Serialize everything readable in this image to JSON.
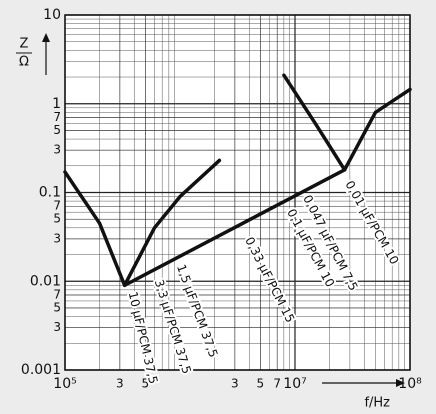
{
  "chart_data": {
    "type": "line",
    "ylabel": {
      "numerator": "Z",
      "denominator": "Ω"
    },
    "xlabel": "f/Hz",
    "xscale": "log",
    "yscale": "log",
    "grid": true,
    "minor_grid": true,
    "xlim": [
      100000,
      100000000
    ],
    "ylim": [
      0.001,
      10
    ],
    "xticks": [
      {
        "value": 100000,
        "label": "10⁵"
      },
      {
        "value": 300000,
        "label": "3"
      },
      {
        "value": 500000,
        "label": "5"
      },
      {
        "value": 3000000,
        "label": "3"
      },
      {
        "value": 5000000,
        "label": "5"
      },
      {
        "value": 7000000,
        "label": "7"
      },
      {
        "value": 10000000,
        "label": "10⁷"
      },
      {
        "value": 100000000,
        "label": "10⁸"
      }
    ],
    "yticks": [
      10,
      1,
      {
        "value": 0.7,
        "label": "7"
      },
      {
        "value": 0.5,
        "label": "5"
      },
      {
        "value": 0.3,
        "label": "3"
      },
      0.1,
      {
        "value": 0.07,
        "label": "7"
      },
      {
        "value": 0.05,
        "label": "5"
      },
      {
        "value": 0.03,
        "label": "3"
      },
      0.01,
      {
        "value": 0.007,
        "label": "7"
      },
      {
        "value": 0.005,
        "label": "5"
      },
      {
        "value": 0.003,
        "label": "3"
      },
      0.001
    ],
    "series": [
      {
        "color": "#111111",
        "x": [
          100000,
          200000,
          330000,
          600000,
          1000000,
          2200000
        ],
        "values": [
          0.17,
          0.045,
          0.009,
          0.04,
          0.09,
          0.23
        ]
      },
      {
        "color": "#111111",
        "x": [
          330000,
          27000000
        ],
        "values": [
          0.009,
          0.18
        ]
      },
      {
        "color": "#111111",
        "x": [
          8000000,
          15000000,
          27000000,
          50000000,
          100000000
        ],
        "values": [
          2.1,
          0.6,
          0.18,
          0.8,
          1.45
        ]
      }
    ],
    "annotations": [
      "10 µF/PCM 37,5",
      "3,3 µF/PCM 37,5",
      "1,5 µF/PCM 37,5",
      "0,33 µF/PCM 15",
      "0,1 µF/PCM 10",
      "0,047 µF/PCM 7,5",
      "0,01 µF/PCM 10"
    ]
  }
}
